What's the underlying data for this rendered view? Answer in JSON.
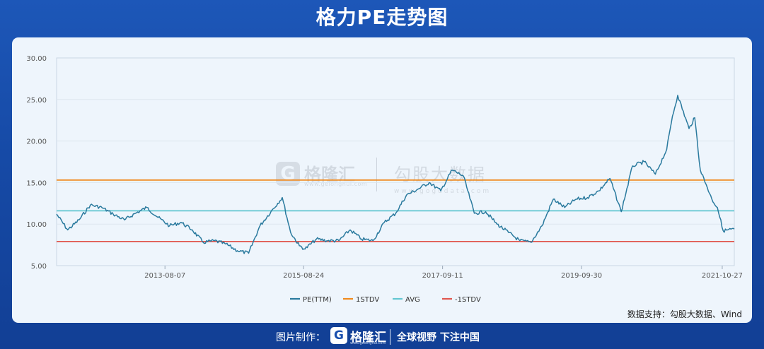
{
  "title": "格力PE走势图",
  "source_note": "数据支持：勾股大数据、Wind",
  "watermark": {
    "brand": "格隆汇",
    "brand_url": "www.gelonghui.com",
    "source": "勾股大数据",
    "source_url": "www.gogudata.com"
  },
  "footer": {
    "made_by": "图片制作：",
    "brand": "格隆汇",
    "brand_url": "www.gelonghui.com",
    "slogan": "全球视野 下注中国"
  },
  "colors": {
    "pe": "#2a7a9e",
    "plus_1std": "#f08a1e",
    "avg": "#62c6d1",
    "minus_1std": "#e0574f"
  },
  "chart_data": {
    "type": "line",
    "title": "格力PE走势图",
    "ylim": [
      5,
      30
    ],
    "y_ticks": [
      "30.00",
      "25.00",
      "20.00",
      "15.00",
      "10.00",
      "5.00"
    ],
    "x_tick_labels": [
      "2013-08-07",
      "2015-08-24",
      "2017-09-11",
      "2019-09-30",
      "2021-10-27"
    ],
    "x_range": [
      "2012-01-01",
      "2021-12-31"
    ],
    "legend": [
      "PE(TTM)",
      "1STDV",
      "AVG",
      "-1STDV"
    ],
    "legend_position": "bottom",
    "series": [
      {
        "name": "PE(TTM)",
        "x": [
          "2012-01-01",
          "2012-03-01",
          "2012-05-01",
          "2012-07-01",
          "2012-09-01",
          "2012-11-01",
          "2013-01-01",
          "2013-03-01",
          "2013-05-01",
          "2013-07-01",
          "2013-09-01",
          "2013-11-01",
          "2014-01-01",
          "2014-03-01",
          "2014-05-01",
          "2014-07-01",
          "2014-09-01",
          "2014-11-01",
          "2015-01-01",
          "2015-03-01",
          "2015-05-01",
          "2015-06-15",
          "2015-08-01",
          "2015-09-01",
          "2015-11-01",
          "2016-01-01",
          "2016-03-01",
          "2016-05-01",
          "2016-07-01",
          "2016-09-01",
          "2016-11-01",
          "2017-01-01",
          "2017-03-01",
          "2017-05-01",
          "2017-07-01",
          "2017-09-01",
          "2017-11-01",
          "2018-01-01",
          "2018-03-01",
          "2018-05-01",
          "2018-07-01",
          "2018-09-01",
          "2018-11-01",
          "2019-01-01",
          "2019-03-01",
          "2019-05-01",
          "2019-07-01",
          "2019-09-01",
          "2019-11-01",
          "2020-01-01",
          "2020-03-01",
          "2020-05-01",
          "2020-07-01",
          "2020-09-01",
          "2020-11-01",
          "2021-01-01",
          "2021-02-01",
          "2021-03-01",
          "2021-05-01",
          "2021-06-01",
          "2021-07-01",
          "2021-08-01",
          "2021-09-01",
          "2021-10-01",
          "2021-11-01",
          "2021-12-31"
        ],
        "values": [
          11.2,
          9.3,
          10.5,
          12.3,
          12.0,
          11.2,
          10.5,
          11.3,
          12.0,
          10.8,
          9.8,
          10.2,
          9.3,
          7.8,
          8.0,
          7.6,
          6.8,
          6.5,
          9.8,
          11.5,
          13.2,
          9.0,
          7.4,
          7.0,
          8.2,
          8.0,
          8.0,
          9.3,
          8.2,
          8.0,
          10.2,
          11.3,
          13.5,
          14.2,
          15.0,
          14.0,
          16.5,
          15.8,
          11.3,
          11.5,
          10.0,
          9.0,
          8.0,
          7.8,
          9.8,
          13.0,
          12.0,
          13.0,
          13.2,
          14.0,
          15.5,
          11.5,
          17.0,
          17.5,
          16.0,
          19.0,
          23.0,
          25.5,
          21.5,
          22.8,
          16.5,
          14.8,
          13.0,
          12.0,
          9.2,
          9.4
        ],
        "color": "#2a7a9e"
      },
      {
        "name": "1STDV",
        "value": 15.3,
        "color": "#f08a1e"
      },
      {
        "name": "AVG",
        "value": 11.6,
        "color": "#62c6d1"
      },
      {
        "name": "-1STDV",
        "value": 7.9,
        "color": "#e0574f"
      }
    ]
  }
}
